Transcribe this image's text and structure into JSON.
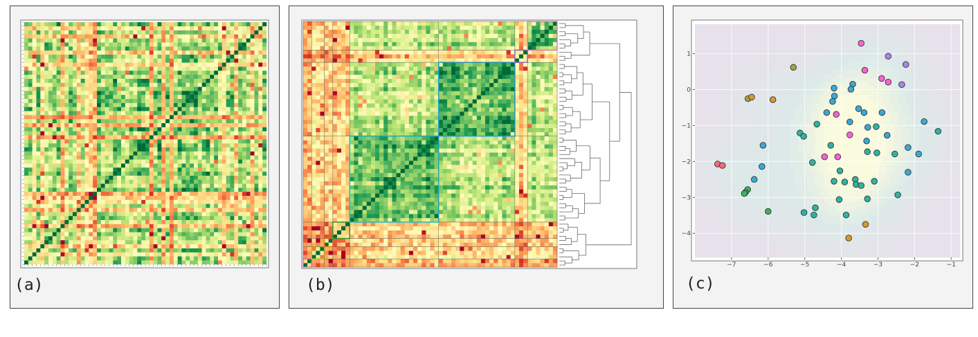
{
  "panels": [
    {
      "label": "(a)"
    },
    {
      "label": "(b)"
    },
    {
      "label": "(c)"
    }
  ],
  "chart_data": [
    {
      "type": "heatmap",
      "panel": "(a)",
      "colormap": "RdYlGn",
      "value_range": [
        0,
        1
      ],
      "diagonal": "bottom-left to top-right",
      "ordering": "unclustered",
      "variable_count": 60
    },
    {
      "type": "heatmap",
      "panel": "(b)",
      "colormap": "RdYlGn",
      "value_range": [
        0,
        1
      ],
      "ordering": "hierarchical clustering",
      "dendrogram": "right",
      "variable_count": 60,
      "clusters": [
        {
          "range": [
            0,
            2
          ],
          "color": "#e377c2"
        },
        {
          "range": [
            2,
            5
          ],
          "color": "#bcbd22"
        },
        {
          "range": [
            5,
            7
          ],
          "color": "#ff7f0e"
        },
        {
          "range": [
            7,
            11
          ],
          "color": "#2ca02c"
        },
        {
          "range": [
            11,
            32
          ],
          "color": "#17becf"
        },
        {
          "range": [
            32,
            50
          ],
          "color": "#1f9fd4"
        },
        {
          "range": [
            50,
            53
          ],
          "color": "#9467bd"
        },
        {
          "range": [
            53,
            60
          ],
          "color": "#e377c2"
        }
      ]
    },
    {
      "type": "scatter",
      "panel": "(c)",
      "background": "kernel density contours",
      "xlim": [
        -8.0,
        -0.76
      ],
      "ylim": [
        -4.67,
        1.82
      ],
      "xticks": [
        -7,
        -6,
        -5,
        -4,
        -3,
        -2,
        -1
      ],
      "yticks": [
        1,
        0,
        -1,
        -2,
        -3,
        -4
      ],
      "grid": true,
      "series": [
        {
          "color": "#f564d4",
          "points": [
            [
              -3.46,
              1.29
            ],
            [
              -3.36,
              0.54
            ],
            [
              -2.9,
              0.31
            ],
            [
              -2.72,
              0.21
            ],
            [
              -4.14,
              -0.69
            ],
            [
              -3.77,
              -1.26
            ],
            [
              -4.46,
              -1.87
            ],
            [
              -4.1,
              -1.87
            ]
          ]
        },
        {
          "color": "#a685ec",
          "points": [
            [
              -2.72,
              0.93
            ],
            [
              -2.24,
              0.7
            ],
            [
              -2.35,
              0.14
            ]
          ]
        },
        {
          "color": "#a0a832",
          "points": [
            [
              -5.31,
              0.62
            ],
            [
              -6.55,
              -0.25
            ]
          ]
        },
        {
          "color": "#d8982f",
          "points": [
            [
              -6.45,
              -0.21
            ],
            [
              -5.87,
              -0.28
            ],
            [
              -3.34,
              -3.75
            ],
            [
              -3.8,
              -4.13
            ]
          ]
        },
        {
          "color": "#f46a7e",
          "points": [
            [
              -7.38,
              -2.07
            ],
            [
              -7.25,
              -2.11
            ]
          ]
        },
        {
          "color": "#3bb25e",
          "points": [
            [
              -6.56,
              -2.78
            ],
            [
              -6.62,
              -2.86
            ],
            [
              -6.65,
              -2.89
            ],
            [
              -6.0,
              -3.39
            ]
          ]
        },
        {
          "color": "#3ba8d4",
          "points": [
            [
              -3.69,
              0.15
            ],
            [
              -3.74,
              0.01
            ],
            [
              -4.2,
              0.04
            ],
            [
              -4.19,
              -0.18
            ],
            [
              -4.24,
              -0.33
            ],
            [
              -4.4,
              -0.64
            ],
            [
              -3.53,
              -0.53
            ],
            [
              -3.38,
              -0.64
            ],
            [
              -2.89,
              -0.64
            ],
            [
              -3.77,
              -0.9
            ],
            [
              -3.28,
              -1.05
            ],
            [
              -2.75,
              -1.27
            ],
            [
              -3.31,
              -1.43
            ],
            [
              -1.74,
              -0.89
            ],
            [
              -2.18,
              -1.61
            ],
            [
              -1.89,
              -1.79
            ],
            [
              -2.18,
              -2.3
            ],
            [
              -6.14,
              -1.55
            ],
            [
              -6.17,
              -2.14
            ],
            [
              -6.38,
              -2.5
            ]
          ]
        },
        {
          "color": "#2fb3a2",
          "points": [
            [
              -4.67,
              -0.96
            ],
            [
              -5.13,
              -1.21
            ],
            [
              -5.03,
              -1.3
            ],
            [
              -4.29,
              -1.55
            ],
            [
              -3.05,
              -1.03
            ],
            [
              -3.29,
              -1.73
            ],
            [
              -3.03,
              -1.76
            ],
            [
              -2.54,
              -1.79
            ],
            [
              -1.36,
              -1.16
            ],
            [
              -4.79,
              -2.03
            ],
            [
              -4.04,
              -2.26
            ],
            [
              -4.2,
              -2.55
            ],
            [
              -3.91,
              -2.57
            ],
            [
              -3.62,
              -2.5
            ],
            [
              -3.6,
              -2.64
            ],
            [
              -3.46,
              -2.67
            ],
            [
              -3.1,
              -2.55
            ],
            [
              -2.46,
              -2.93
            ],
            [
              -4.06,
              -3.06
            ],
            [
              -3.29,
              -3.04
            ],
            [
              -4.71,
              -3.29
            ],
            [
              -5.02,
              -3.42
            ],
            [
              -4.75,
              -3.49
            ],
            [
              -3.87,
              -3.49
            ]
          ]
        }
      ]
    }
  ]
}
